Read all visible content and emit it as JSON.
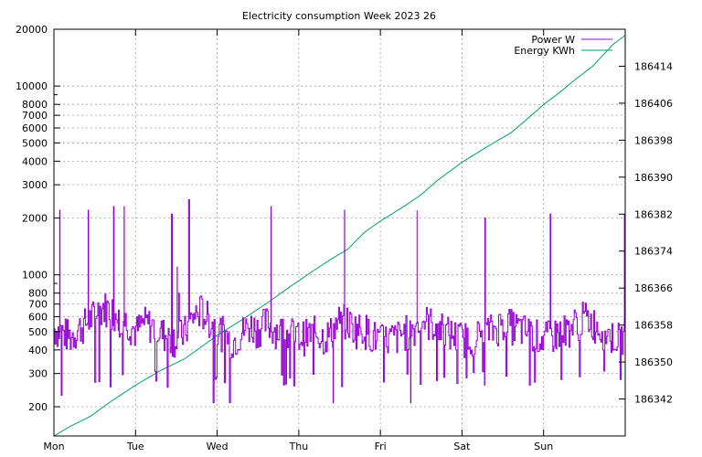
{
  "chart_data": {
    "type": "line",
    "title": "Electricity consumption Week 2023 26",
    "x": {
      "categories": [
        "Mon",
        "Tue",
        "Wed",
        "Thu",
        "Fri",
        "Sat",
        "Sun"
      ],
      "range_days": [
        0,
        7
      ]
    },
    "y_left": {
      "scale": "log",
      "range": [
        140,
        20000
      ],
      "ticks": [
        200,
        300,
        400,
        500,
        600,
        700,
        800,
        1000,
        2000,
        3000,
        4000,
        5000,
        6000,
        7000,
        8000,
        10000,
        20000
      ]
    },
    "y_right": {
      "scale": "linear",
      "range": [
        186334,
        186422
      ],
      "ticks": [
        186342,
        186350,
        186358,
        186366,
        186374,
        186382,
        186390,
        186398,
        186406,
        186414
      ]
    },
    "grid": true,
    "legend": {
      "placement": "top-right"
    },
    "colors": {
      "power": "#9400d3",
      "energy": "#009e73"
    },
    "series": [
      {
        "name": "Power W",
        "axis": "left",
        "color": "#9400d3",
        "style": "steps",
        "baseline_points": [
          [
            0.0,
            520
          ],
          [
            0.1,
            500
          ],
          [
            0.2,
            470
          ],
          [
            0.3,
            520
          ],
          [
            0.4,
            560
          ],
          [
            0.5,
            620
          ],
          [
            0.6,
            680
          ],
          [
            0.7,
            650
          ],
          [
            0.8,
            600
          ],
          [
            0.9,
            560
          ],
          [
            1.0,
            500
          ],
          [
            1.1,
            560
          ],
          [
            1.2,
            540
          ],
          [
            1.3,
            500
          ],
          [
            1.4,
            470
          ],
          [
            1.5,
            460
          ],
          [
            1.6,
            500
          ],
          [
            1.7,
            600
          ],
          [
            1.8,
            650
          ],
          [
            1.9,
            580
          ],
          [
            2.0,
            520
          ],
          [
            2.1,
            480
          ],
          [
            2.2,
            450
          ],
          [
            2.3,
            500
          ],
          [
            2.4,
            540
          ],
          [
            2.5,
            520
          ],
          [
            2.6,
            560
          ],
          [
            2.7,
            520
          ],
          [
            2.8,
            500
          ],
          [
            2.9,
            490
          ],
          [
            3.0,
            470
          ],
          [
            3.1,
            480
          ],
          [
            3.2,
            500
          ],
          [
            3.3,
            470
          ],
          [
            3.4,
            500
          ],
          [
            3.5,
            580
          ],
          [
            3.6,
            560
          ],
          [
            3.7,
            520
          ],
          [
            3.8,
            520
          ],
          [
            3.9,
            480
          ],
          [
            4.0,
            450
          ],
          [
            4.1,
            460
          ],
          [
            4.2,
            470
          ],
          [
            4.3,
            500
          ],
          [
            4.4,
            520
          ],
          [
            4.5,
            580
          ],
          [
            4.6,
            560
          ],
          [
            4.7,
            540
          ],
          [
            4.8,
            500
          ],
          [
            4.9,
            480
          ],
          [
            5.0,
            460
          ],
          [
            5.1,
            470
          ],
          [
            5.2,
            480
          ],
          [
            5.3,
            500
          ],
          [
            5.4,
            520
          ],
          [
            5.5,
            560
          ],
          [
            5.6,
            540
          ],
          [
            5.7,
            520
          ],
          [
            5.8,
            500
          ],
          [
            5.9,
            480
          ],
          [
            6.0,
            460
          ],
          [
            6.1,
            480
          ],
          [
            6.2,
            500
          ],
          [
            6.3,
            520
          ],
          [
            6.4,
            560
          ],
          [
            6.5,
            600
          ],
          [
            6.6,
            560
          ],
          [
            6.7,
            520
          ],
          [
            6.8,
            480
          ],
          [
            6.9,
            460
          ],
          [
            7.0,
            470
          ]
        ],
        "spikes": [
          [
            0.07,
            2200
          ],
          [
            0.09,
            230
          ],
          [
            0.42,
            2200
          ],
          [
            0.73,
            2300
          ],
          [
            0.79,
            650
          ],
          [
            0.86,
            2300
          ],
          [
            1.44,
            2100
          ],
          [
            1.51,
            1100
          ],
          [
            1.53,
            800
          ],
          [
            1.65,
            2500
          ],
          [
            2.66,
            2300
          ],
          [
            3.56,
            2200
          ],
          [
            4.45,
            2200
          ],
          [
            5.28,
            2000
          ],
          [
            6.08,
            2100
          ],
          [
            6.99,
            2100
          ],
          [
            1.95,
            210
          ],
          [
            2.15,
            210
          ],
          [
            3.42,
            210
          ],
          [
            4.37,
            210
          ]
        ]
      },
      {
        "name": "Energy KWh",
        "axis": "right",
        "color": "#009e73",
        "style": "line",
        "points": [
          [
            0.0,
            186334.0
          ],
          [
            0.2,
            186336.1
          ],
          [
            0.45,
            186338.3
          ],
          [
            0.7,
            186341.5
          ],
          [
            1.0,
            186345.0
          ],
          [
            1.3,
            186348.1
          ],
          [
            1.6,
            186350.7
          ],
          [
            1.8,
            186353.2
          ],
          [
            2.0,
            186355.8
          ],
          [
            2.3,
            186359.1
          ],
          [
            2.6,
            186362.6
          ],
          [
            2.9,
            186366.4
          ],
          [
            3.2,
            186370.0
          ],
          [
            3.4,
            186372.3
          ],
          [
            3.6,
            186374.4
          ],
          [
            3.8,
            186378.0
          ],
          [
            4.0,
            186380.5
          ],
          [
            4.3,
            186383.8
          ],
          [
            4.5,
            186386.2
          ],
          [
            4.7,
            186389.3
          ],
          [
            5.0,
            186393.2
          ],
          [
            5.3,
            186396.5
          ],
          [
            5.6,
            186399.6
          ],
          [
            5.8,
            186402.6
          ],
          [
            6.0,
            186405.7
          ],
          [
            6.2,
            186408.4
          ],
          [
            6.4,
            186411.3
          ],
          [
            6.6,
            186414.0
          ],
          [
            6.85,
            186418.7
          ],
          [
            7.0,
            186420.7
          ]
        ]
      }
    ]
  }
}
